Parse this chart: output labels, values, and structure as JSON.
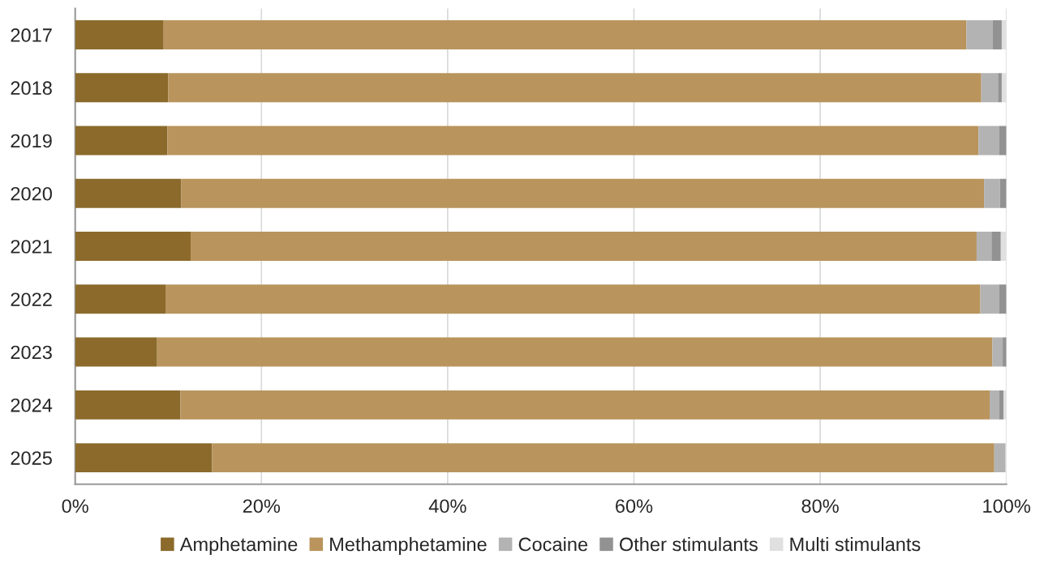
{
  "chart_data": {
    "type": "bar",
    "orientation": "horizontal",
    "stacked": true,
    "categories": [
      "2017",
      "2018",
      "2019",
      "2020",
      "2021",
      "2022",
      "2023",
      "2024",
      "2025"
    ],
    "series": [
      {
        "name": "Amphetamine",
        "color": "#8b6a2b",
        "values": [
          9.5,
          10.0,
          9.9,
          11.4,
          12.4,
          9.7,
          8.8,
          11.3,
          14.7
        ]
      },
      {
        "name": "Methamphetamine",
        "color": "#b9945c",
        "values": [
          86.2,
          87.3,
          87.1,
          86.2,
          84.4,
          87.5,
          89.7,
          86.9,
          84.0
        ]
      },
      {
        "name": "Cocaine",
        "color": "#b3b3b3",
        "values": [
          2.8,
          1.8,
          2.2,
          1.7,
          1.6,
          2.0,
          1.1,
          1.0,
          1.2
        ]
      },
      {
        "name": "Other stimulants",
        "color": "#929292",
        "values": [
          1.0,
          0.4,
          0.8,
          0.7,
          1.0,
          0.8,
          0.4,
          0.5,
          null
        ]
      },
      {
        "name": "Multi stimulants",
        "color": "#e0e0e0",
        "values": [
          0.5,
          0.5,
          null,
          null,
          0.6,
          null,
          null,
          0.3,
          null
        ]
      }
    ],
    "xlim": [
      0,
      100
    ],
    "xticks": [
      {
        "value": 0,
        "label": "0%"
      },
      {
        "value": 20,
        "label": "20%"
      },
      {
        "value": 40,
        "label": "40%"
      },
      {
        "value": 60,
        "label": "60%"
      },
      {
        "value": 80,
        "label": "80%"
      },
      {
        "value": 100,
        "label": "100%"
      }
    ],
    "grid": "x",
    "legend": "bottom"
  }
}
